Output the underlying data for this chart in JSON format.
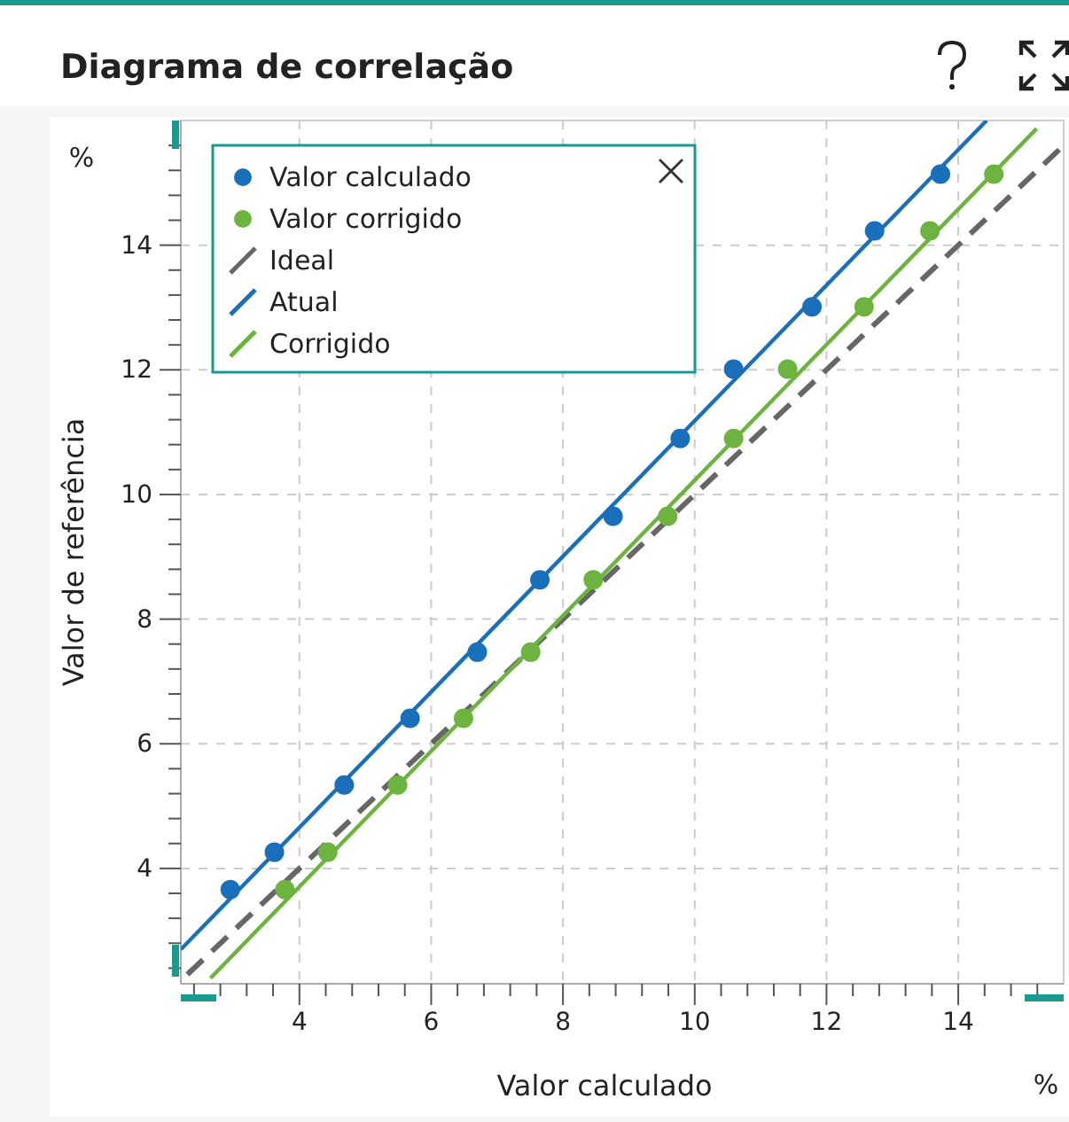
{
  "chart_data": {
    "type": "scatter",
    "title": "Diagrama de correlação",
    "xlabel": "Valor calculado",
    "ylabel": "Valor de referência",
    "annotations": [
      "%",
      "%"
    ],
    "xlim": [
      2.2,
      15.6
    ],
    "ylim": [
      2.15,
      16
    ],
    "xticks": [
      {
        "value": 2.4,
        "label": null
      },
      {
        "value": 2.8,
        "label": null
      },
      {
        "value": 3.2,
        "label": null
      },
      {
        "value": 3.6,
        "label": null
      },
      4,
      {
        "value": 4.4,
        "label": null
      },
      {
        "value": 4.8,
        "label": null
      },
      {
        "value": 5.2,
        "label": null
      },
      {
        "value": 5.6,
        "label": null
      },
      6,
      {
        "value": 6.4,
        "label": null
      },
      {
        "value": 6.8,
        "label": null
      },
      {
        "value": 7.2,
        "label": null
      },
      {
        "value": 7.6,
        "label": null
      },
      8,
      {
        "value": 8.4,
        "label": null
      },
      {
        "value": 8.8,
        "label": null
      },
      {
        "value": 9.2,
        "label": null
      },
      {
        "value": 9.6,
        "label": null
      },
      10,
      {
        "value": 10.4,
        "label": null
      },
      {
        "value": 10.8,
        "label": null
      },
      {
        "value": 11.2,
        "label": null
      },
      {
        "value": 11.6,
        "label": null
      },
      12,
      {
        "value": 12.4,
        "label": null
      },
      {
        "value": 12.8,
        "label": null
      },
      {
        "value": 13.2,
        "label": null
      },
      {
        "value": 13.6,
        "label": null
      },
      14,
      {
        "value": 14.4,
        "label": null
      },
      {
        "value": 14.8,
        "label": null
      },
      {
        "value": 15.2,
        "label": null
      }
    ],
    "yticks": [
      {
        "value": 2.4,
        "label": null
      },
      {
        "value": 2.8,
        "label": null
      },
      {
        "value": 3.2,
        "label": null
      },
      {
        "value": 3.6,
        "label": null
      },
      4,
      {
        "value": 4.4,
        "label": null
      },
      {
        "value": 4.8,
        "label": null
      },
      {
        "value": 5.2,
        "label": null
      },
      {
        "value": 5.6,
        "label": null
      },
      6,
      {
        "value": 6.4,
        "label": null
      },
      {
        "value": 6.8,
        "label": null
      },
      {
        "value": 7.2,
        "label": null
      },
      {
        "value": 7.6,
        "label": null
      },
      8,
      {
        "value": 8.4,
        "label": null
      },
      {
        "value": 8.8,
        "label": null
      },
      {
        "value": 9.2,
        "label": null
      },
      {
        "value": 9.6,
        "label": null
      },
      10,
      {
        "value": 10.4,
        "label": null
      },
      {
        "value": 10.8,
        "label": null
      },
      {
        "value": 11.2,
        "label": null
      },
      {
        "value": 11.6,
        "label": null
      },
      12,
      {
        "value": 12.4,
        "label": null
      },
      {
        "value": 12.8,
        "label": null
      },
      {
        "value": 13.2,
        "label": null
      },
      {
        "value": 13.6,
        "label": null
      },
      14,
      {
        "value": 14.4,
        "label": null
      },
      {
        "value": 14.8,
        "label": null
      },
      {
        "value": 15.2,
        "label": null
      },
      {
        "value": 15.6,
        "label": null
      }
    ],
    "grid": true,
    "legend": "top left",
    "marker": "circle",
    "series": [
      {
        "name": "Valor calculado",
        "color": "#1a6fba",
        "x": [
          2.95,
          3.62,
          4.68,
          5.68,
          6.7,
          7.65,
          8.76,
          9.78,
          10.59,
          11.78,
          12.73,
          13.73
        ],
        "values": [
          3.66,
          4.26,
          5.34,
          6.41,
          7.47,
          8.63,
          9.65,
          10.9,
          12.01,
          13.01,
          14.23,
          15.14
        ]
      },
      {
        "name": "Valor corrigido",
        "color": "#6db33f",
        "x": [
          3.78,
          4.43,
          5.49,
          6.49,
          7.51,
          8.46,
          9.59,
          10.59,
          11.41,
          12.57,
          13.57,
          14.54
        ],
        "values": [
          3.66,
          4.26,
          5.34,
          6.41,
          7.47,
          8.63,
          9.65,
          10.9,
          12.01,
          13.01,
          14.23,
          15.14
        ]
      },
      {
        "name": "Ideal",
        "type": "line",
        "color": "#666666",
        "line_style": "dashed",
        "marker": "none",
        "x": [
          2.3,
          15.6
        ],
        "values": [
          2.3,
          15.6
        ]
      },
      {
        "name": "Atual",
        "type": "line",
        "color": "#1a6fba",
        "marker": "none",
        "x": [
          2.2,
          14.43
        ],
        "values": [
          2.7,
          16
        ]
      },
      {
        "name": "Corrigido",
        "type": "line",
        "color": "#6db33f",
        "marker": "none",
        "x": [
          2.65,
          15.19
        ],
        "values": [
          2.24,
          15.87
        ]
      }
    ]
  }
}
